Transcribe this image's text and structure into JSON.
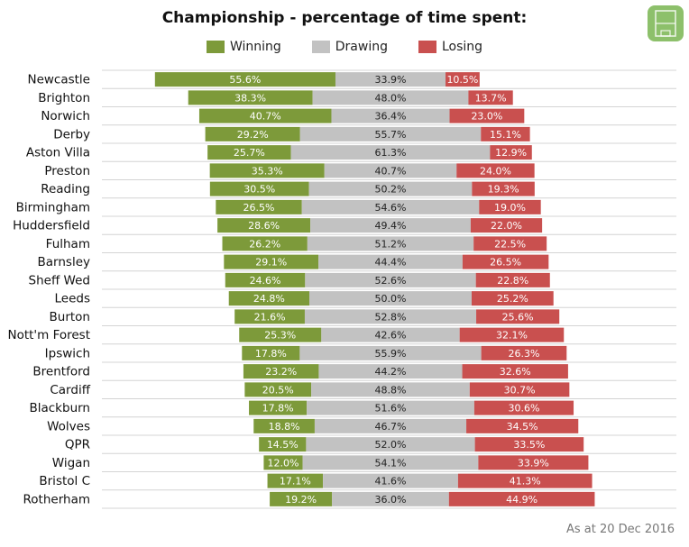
{
  "title": "Championship - percentage of time spent:",
  "footnote": "As at 20 Dec 2016",
  "colors": {
    "winning": "#7d9a3a",
    "drawing": "#c2c2c2",
    "losing": "#c9504f"
  },
  "chart_data": {
    "type": "bar",
    "stacked": true,
    "orientation": "horizontal",
    "title": "Championship - percentage of time spent:",
    "legend": [
      "Winning",
      "Drawing",
      "Losing"
    ],
    "legend_position": "top",
    "categories": [
      "Newcastle",
      "Brighton",
      "Norwich",
      "Derby",
      "Aston Villa",
      "Preston",
      "Reading",
      "Birmingham",
      "Huddersfield",
      "Fulham",
      "Barnsley",
      "Sheff Wed",
      "Leeds",
      "Burton",
      "Nott'm Forest",
      "Ipswich",
      "Brentford",
      "Cardiff",
      "Blackburn",
      "Wolves",
      "QPR",
      "Wigan",
      "Bristol C",
      "Rotherham"
    ],
    "series": [
      {
        "name": "Winning",
        "values": [
          "55.6%",
          "38.3%",
          "40.7%",
          "29.2%",
          "25.7%",
          "35.3%",
          "30.5%",
          "26.5%",
          "28.6%",
          "26.2%",
          "29.1%",
          "24.6%",
          "24.8%",
          "21.6%",
          "25.3%",
          "17.8%",
          "23.2%",
          "20.5%",
          "17.8%",
          "18.8%",
          "14.5%",
          "12.0%",
          "17.1%",
          "19.2%"
        ]
      },
      {
        "name": "Drawing",
        "values": [
          "33.9%",
          "48.0%",
          "36.4%",
          "55.7%",
          "61.3%",
          "40.7%",
          "50.2%",
          "54.6%",
          "49.4%",
          "51.2%",
          "44.4%",
          "52.6%",
          "50.0%",
          "52.8%",
          "42.6%",
          "55.9%",
          "44.2%",
          "48.8%",
          "51.6%",
          "46.7%",
          "52.0%",
          "54.1%",
          "41.6%",
          "36.0%"
        ]
      },
      {
        "name": "Losing",
        "values": [
          "10.5%",
          "13.7%",
          "23.0%",
          "15.1%",
          "12.9%",
          "24.0%",
          "19.3%",
          "19.0%",
          "22.0%",
          "22.5%",
          "26.5%",
          "22.8%",
          "25.2%",
          "25.6%",
          "32.1%",
          "26.3%",
          "32.6%",
          "30.7%",
          "30.6%",
          "34.5%",
          "33.5%",
          "33.9%",
          "41.3%",
          "44.9%"
        ]
      }
    ],
    "xlim": [
      0,
      100
    ]
  }
}
